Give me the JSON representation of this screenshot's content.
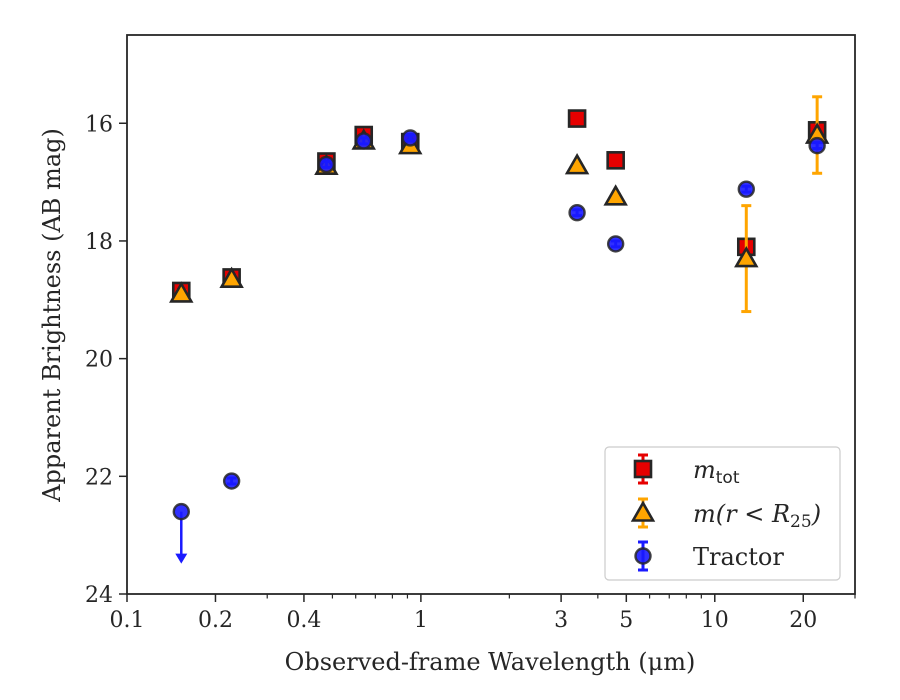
{
  "chart_data": {
    "type": "scatter",
    "xlabel": "Observed-frame Wavelength (μm)",
    "ylabel": "Apparent Brightness (AB mag)",
    "xscale": "log",
    "xlim": [
      0.1,
      30
    ],
    "ylim": [
      24,
      14.5
    ],
    "y_inverted": true,
    "x_tick_labels": [
      {
        "value": 0.1,
        "label": "0.1"
      },
      {
        "value": 0.2,
        "label": "0.2"
      },
      {
        "value": 0.4,
        "label": "0.4"
      },
      {
        "value": 1,
        "label": "1"
      },
      {
        "value": 3,
        "label": "3"
      },
      {
        "value": 5,
        "label": "5"
      },
      {
        "value": 10,
        "label": "10"
      },
      {
        "value": 20,
        "label": "20"
      }
    ],
    "x_minor_ticks": [
      0.3,
      0.5,
      0.6,
      0.7,
      0.8,
      0.9,
      2,
      4,
      6,
      7,
      8,
      9,
      30
    ],
    "y_tick_labels": [
      {
        "value": 16,
        "label": "16"
      },
      {
        "value": 18,
        "label": "18"
      },
      {
        "value": 20,
        "label": "20"
      },
      {
        "value": 22,
        "label": "22"
      },
      {
        "value": 24,
        "label": "24"
      }
    ],
    "legend_position": "lower-right",
    "series": [
      {
        "key": "mtot",
        "legend_main": "m",
        "legend_sub": "tot",
        "legend_rest": "",
        "marker": "square",
        "fill": "#e60000",
        "errcolor": "#e60000",
        "points": [
          {
            "x": 0.153,
            "y": 18.85,
            "yerr": 0.06
          },
          {
            "x": 0.227,
            "y": 18.62,
            "yerr": 0.05
          },
          {
            "x": 0.477,
            "y": 16.65,
            "yerr": 0.05
          },
          {
            "x": 0.639,
            "y": 16.2,
            "yerr": 0.05
          },
          {
            "x": 0.92,
            "y": 16.32,
            "yerr": 0.05
          },
          {
            "x": 3.4,
            "y": 15.92,
            "yerr": 0.04
          },
          {
            "x": 4.6,
            "y": 16.63,
            "yerr": 0.04
          },
          {
            "x": 12.8,
            "y": 18.1,
            "yerr": 0.05
          },
          {
            "x": 22.3,
            "y": 16.12,
            "yerr": 0.05
          }
        ]
      },
      {
        "key": "mr",
        "legend_main": "m",
        "legend_sub": "",
        "legend_rest": "(r < R",
        "legend_sub2": "25",
        "legend_close": ")",
        "marker": "triangle",
        "fill": "#ffa500",
        "errcolor": "#ffa500",
        "points": [
          {
            "x": 0.153,
            "y": 18.9,
            "yerr": 0.05
          },
          {
            "x": 0.227,
            "y": 18.65,
            "yerr": 0.05
          },
          {
            "x": 0.477,
            "y": 16.73,
            "yerr": 0.04
          },
          {
            "x": 0.639,
            "y": 16.3,
            "yerr": 0.04
          },
          {
            "x": 0.92,
            "y": 16.38,
            "yerr": 0.04
          },
          {
            "x": 3.4,
            "y": 16.72,
            "yerr": 0.04
          },
          {
            "x": 4.6,
            "y": 17.25,
            "yerr": 0.04
          },
          {
            "x": 12.8,
            "y": 18.3,
            "yerr": 0.9
          },
          {
            "x": 22.3,
            "y": 16.2,
            "yerr": 0.65
          }
        ]
      },
      {
        "key": "tractor",
        "legend_main": "Tractor",
        "marker": "circle",
        "fill": "#1a1aff",
        "errcolor": "#1a1aff",
        "points": [
          {
            "x": 0.153,
            "y": 22.6,
            "upper_limit": true
          },
          {
            "x": 0.227,
            "y": 22.08,
            "yerr": 0.05
          },
          {
            "x": 0.477,
            "y": 16.7,
            "yerr": 0.05
          },
          {
            "x": 0.639,
            "y": 16.3,
            "yerr": 0.05
          },
          {
            "x": 0.92,
            "y": 16.25,
            "yerr": 0.05
          },
          {
            "x": 3.4,
            "y": 17.52,
            "yerr": 0.05
          },
          {
            "x": 4.6,
            "y": 18.05,
            "yerr": 0.05
          },
          {
            "x": 12.8,
            "y": 17.12,
            "yerr": 0.05
          },
          {
            "x": 22.3,
            "y": 16.38,
            "yerr": 0.05
          }
        ]
      }
    ]
  }
}
